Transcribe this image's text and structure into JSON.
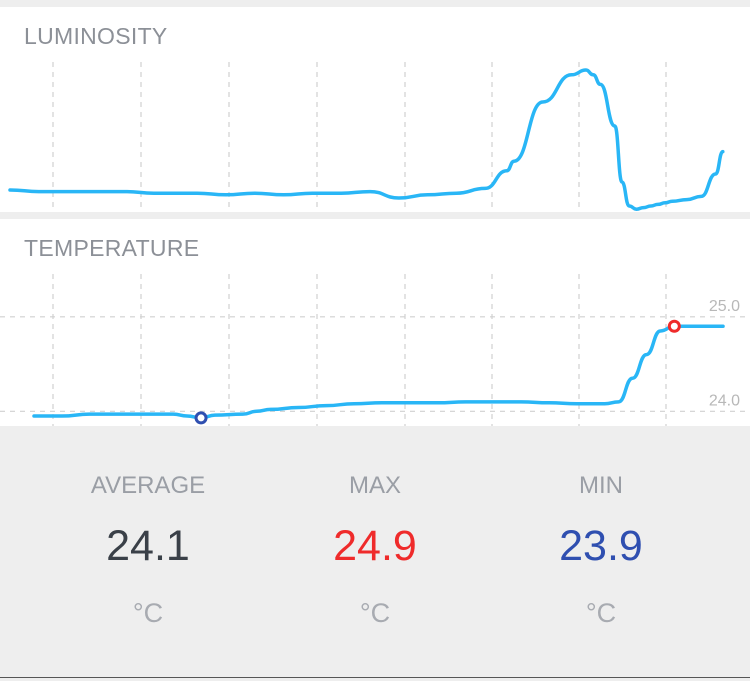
{
  "colors": {
    "line": "#29b6f6",
    "grid": "#d0d0d0",
    "max": "#ef2b2b",
    "min": "#2f4fb0",
    "average": "#3a4048",
    "axis_text": "#b8b8b8"
  },
  "chart_data": [
    {
      "type": "line",
      "title": "LUMINOSITY",
      "grid": true,
      "ylim": [
        0,
        100
      ],
      "x": [
        0,
        4,
        8,
        12,
        16,
        20,
        26,
        30,
        34,
        38,
        42,
        46,
        50,
        54,
        58,
        62,
        66,
        69,
        70,
        74,
        78,
        80,
        81,
        82,
        84,
        85,
        86,
        87,
        88,
        89,
        90,
        91,
        92,
        94,
        96,
        98,
        99
      ],
      "values": [
        20,
        19,
        19,
        19,
        19,
        18,
        18,
        17,
        18,
        17,
        18,
        18,
        19,
        15,
        17,
        18,
        21,
        32,
        38,
        75,
        92,
        95,
        92,
        86,
        60,
        25,
        10,
        8,
        9,
        10,
        11,
        12,
        13,
        14,
        16,
        30,
        44
      ]
    },
    {
      "type": "line",
      "title": "TEMPERATURE",
      "grid": true,
      "y_ticks": [
        "25.0",
        "24.0"
      ],
      "ylim": [
        23.4,
        25.4
      ],
      "x": [
        0,
        4,
        8,
        12,
        16,
        20,
        22,
        24,
        26,
        30,
        32,
        34,
        38,
        42,
        46,
        50,
        54,
        58,
        62,
        66,
        70,
        74,
        78,
        82,
        84,
        86,
        88,
        90,
        92,
        94,
        96,
        98,
        99
      ],
      "values": [
        23.95,
        23.95,
        23.97,
        23.97,
        23.97,
        23.97,
        23.95,
        23.93,
        23.96,
        23.97,
        24.0,
        24.02,
        24.04,
        24.06,
        24.08,
        24.09,
        24.09,
        24.09,
        24.1,
        24.1,
        24.1,
        24.09,
        24.08,
        24.08,
        24.1,
        24.35,
        24.6,
        24.85,
        24.9,
        24.9,
        24.9,
        24.9,
        24.9
      ],
      "min_point": {
        "x": 24,
        "value": 23.93
      },
      "max_point": {
        "x": 92,
        "value": 24.9
      }
    }
  ],
  "stats": {
    "average": {
      "label": "AVERAGE",
      "value": "24.1",
      "unit": "°C"
    },
    "max": {
      "label": "MAX",
      "value": "24.9",
      "unit": "°C"
    },
    "min": {
      "label": "MIN",
      "value": "23.9",
      "unit": "°C"
    }
  }
}
